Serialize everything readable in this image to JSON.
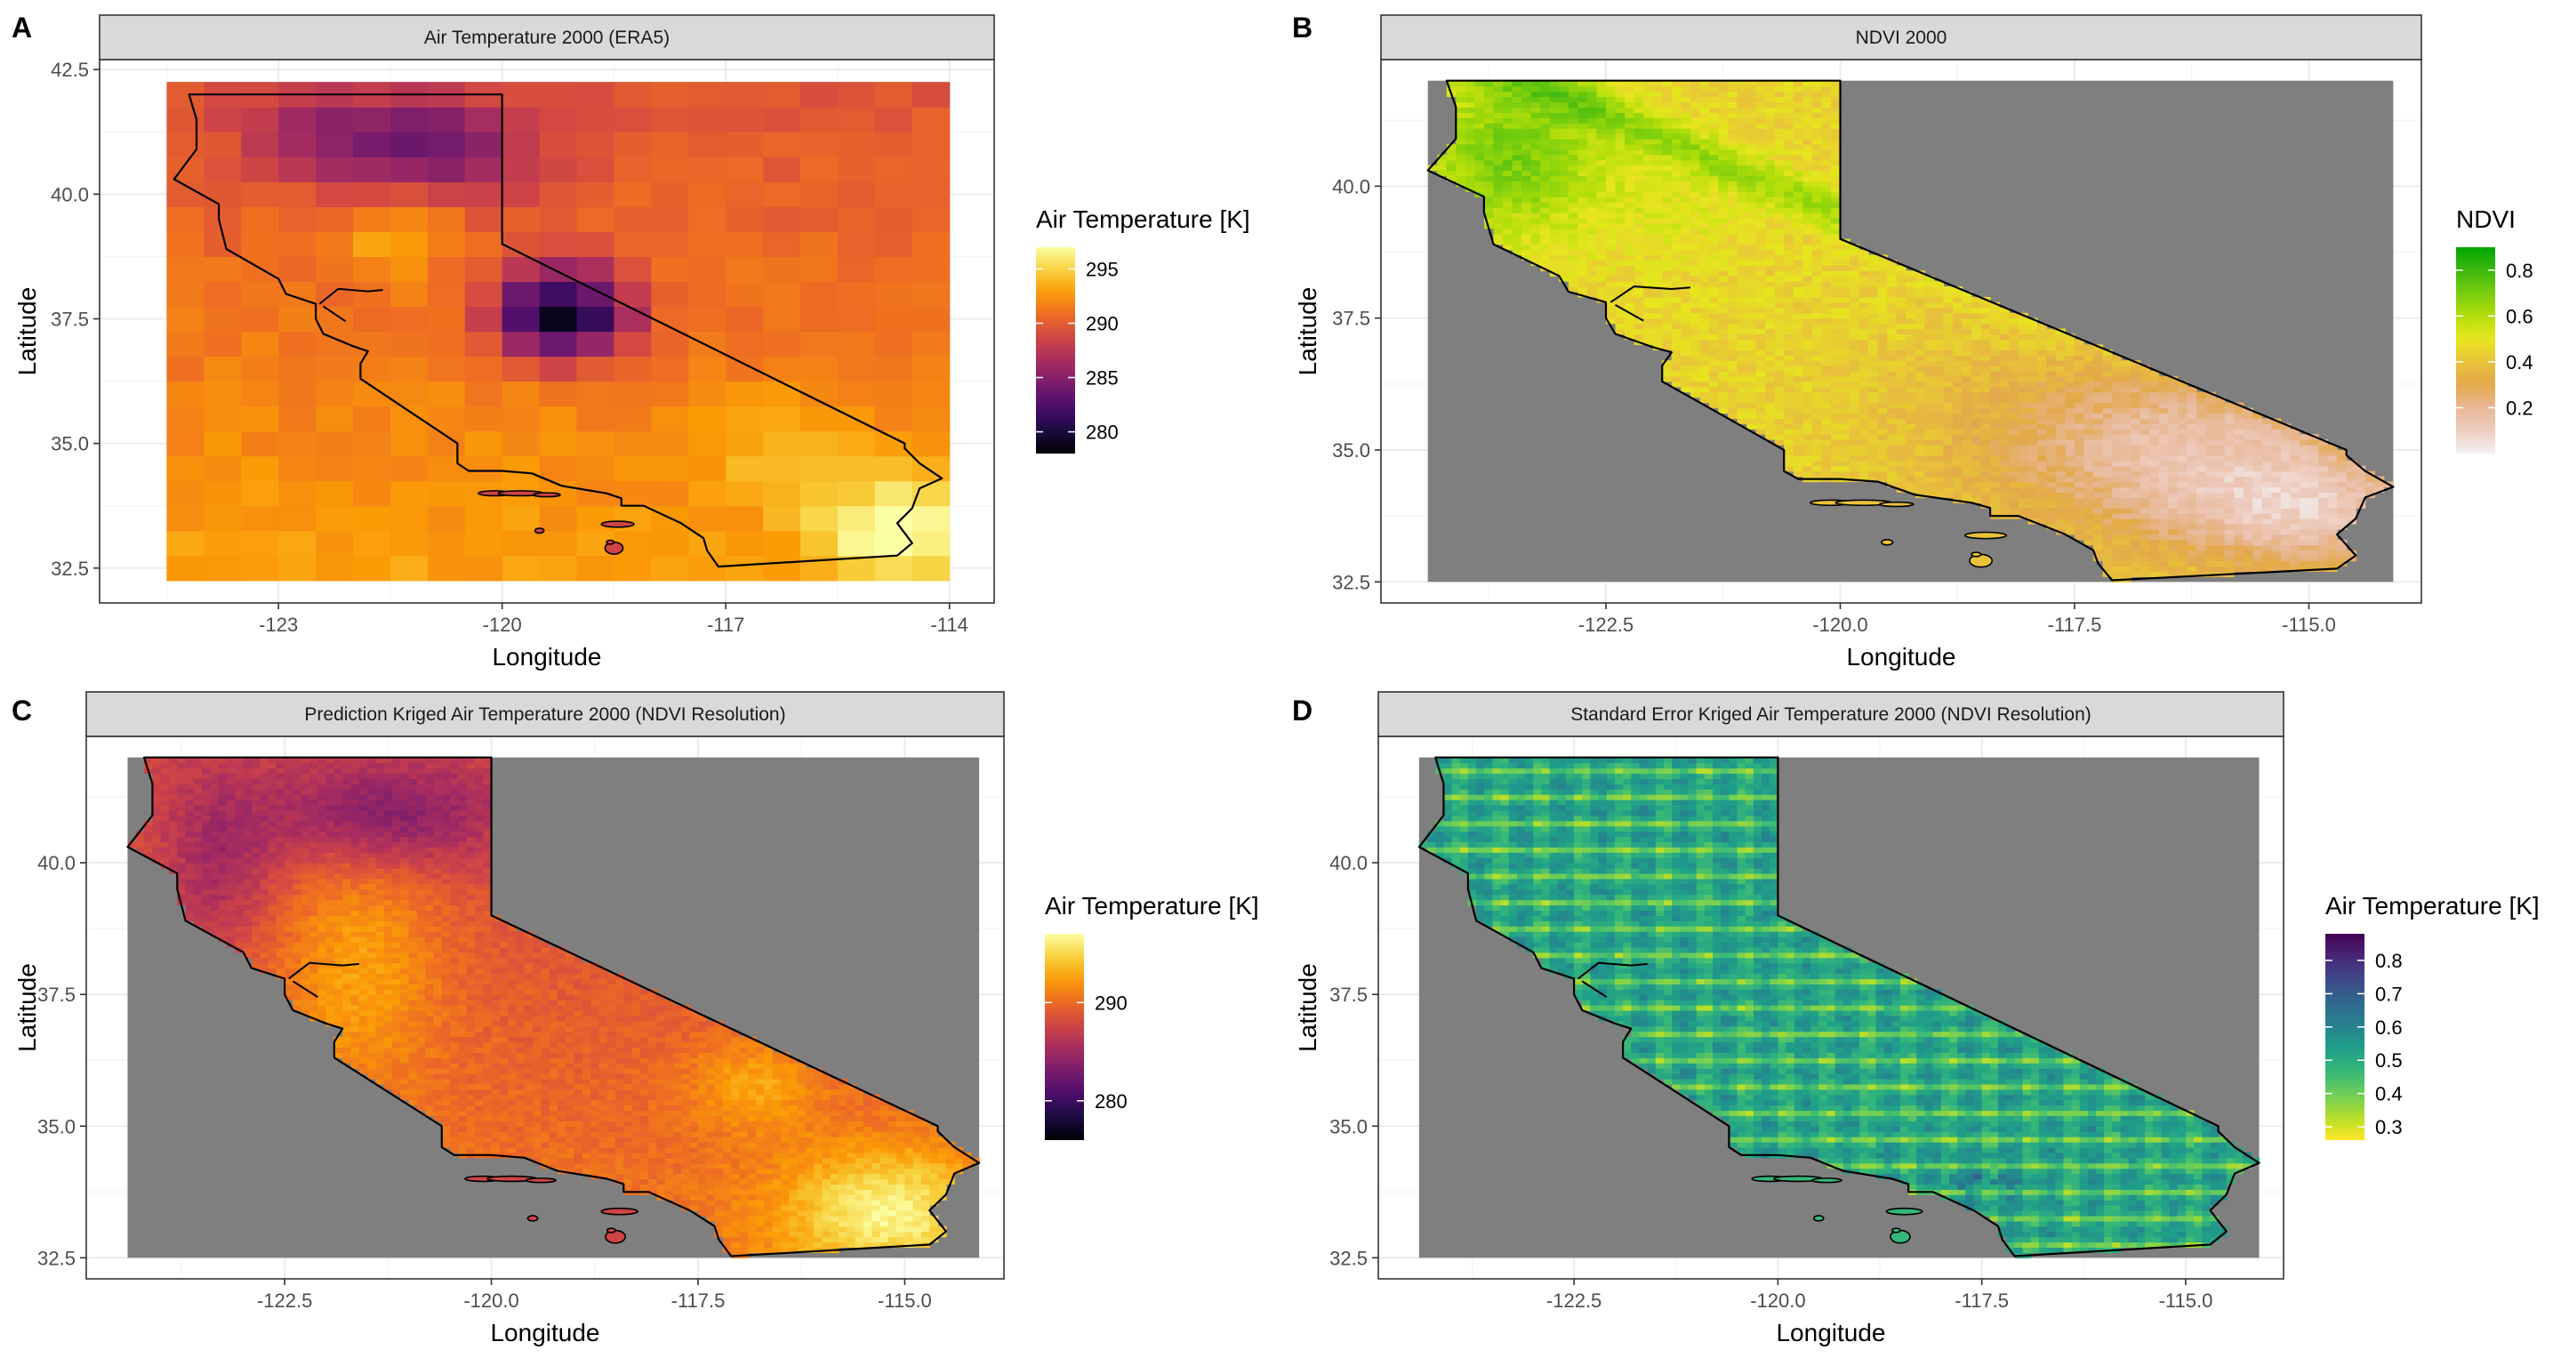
{
  "chart_data": [
    {
      "panel": "A",
      "type": "heatmap",
      "title": "Air Temperature 2000 (ERA5)",
      "xlabel": "Longitude",
      "ylabel": "Latitude",
      "xlim": [
        -125.4,
        -113.4
      ],
      "ylim": [
        31.8,
        42.7
      ],
      "xticks": [
        -123,
        -120,
        -117,
        -114
      ],
      "xtick_labels": [
        "-123",
        "-120",
        "-117",
        "-114"
      ],
      "yticks": [
        32.5,
        35.0,
        37.5,
        40.0,
        42.5
      ],
      "ytick_labels": [
        "32.5",
        "35.0",
        "37.5",
        "40.0",
        "42.5"
      ],
      "grid": true,
      "legend": {
        "title": "Air Temperature [K]",
        "placement": "right",
        "palette": "inferno",
        "range": [
          278,
          297
        ],
        "ticks": [
          280,
          285,
          290,
          295
        ],
        "tick_labels": [
          "280",
          "285",
          "290",
          "295"
        ]
      },
      "grid_extent": {
        "lon": [
          -124.5,
          -114.0
        ],
        "lat": [
          32.25,
          42.25
        ]
      },
      "cell_size": 0.5,
      "feature_notes": {
        "cold_center": [
          -119.25,
          37.5
        ],
        "warm_se": [
          -114.7,
          33.2
        ]
      }
    },
    {
      "panel": "B",
      "type": "heatmap",
      "title": "NDVI 2000",
      "xlabel": "Longitude",
      "ylabel": "Latitude",
      "xlim": [
        -124.9,
        -113.8
      ],
      "ylim": [
        32.1,
        42.4
      ],
      "xticks": [
        -122.5,
        -120.0,
        -117.5,
        -115.0
      ],
      "xtick_labels": [
        "-122.5",
        "-120.0",
        "-117.5",
        "-115.0"
      ],
      "yticks": [
        32.5,
        35.0,
        37.5,
        40.0
      ],
      "ytick_labels": [
        "32.5",
        "35.0",
        "37.5",
        "40.0"
      ],
      "grid": true,
      "legend": {
        "title": "NDVI",
        "placement": "right",
        "palette": "terrain-reversed",
        "range": [
          0.0,
          0.9
        ],
        "ticks": [
          0.2,
          0.4,
          0.6,
          0.8
        ],
        "tick_labels": [
          "0.2",
          "0.4",
          "0.6",
          "0.8"
        ]
      },
      "grid_extent": {
        "lon": [
          -124.4,
          -114.1
        ],
        "lat": [
          32.5,
          42.0
        ]
      }
    },
    {
      "panel": "C",
      "type": "heatmap",
      "title": "Prediction Kriged Air Temperature 2000 (NDVI Resolution)",
      "xlabel": "Longitude",
      "ylabel": "Latitude",
      "xlim": [
        -124.9,
        -113.8
      ],
      "ylim": [
        32.1,
        42.4
      ],
      "xticks": [
        -122.5,
        -120.0,
        -117.5,
        -115.0
      ],
      "xtick_labels": [
        "-122.5",
        "-120.0",
        "-117.5",
        "-115.0"
      ],
      "yticks": [
        32.5,
        35.0,
        37.5,
        40.0
      ],
      "ytick_labels": [
        "32.5",
        "35.0",
        "37.5",
        "40.0"
      ],
      "grid": true,
      "legend": {
        "title": "Air Temperature [K]",
        "placement": "right",
        "palette": "inferno",
        "range": [
          276,
          297
        ],
        "ticks": [
          280,
          290
        ],
        "tick_labels": [
          "280",
          "290"
        ]
      },
      "grid_extent": {
        "lon": [
          -124.4,
          -114.1
        ],
        "lat": [
          32.5,
          42.0
        ]
      }
    },
    {
      "panel": "D",
      "type": "heatmap",
      "title": "Standard Error Kriged Air Temperature 2000 (NDVI Resolution)",
      "xlabel": "Longitude",
      "ylabel": "Latitude",
      "xlim": [
        -124.9,
        -113.8
      ],
      "ylim": [
        32.1,
        42.4
      ],
      "xticks": [
        -122.5,
        -120.0,
        -117.5,
        -115.0
      ],
      "xtick_labels": [
        "-122.5",
        "-120.0",
        "-117.5",
        "-115.0"
      ],
      "yticks": [
        32.5,
        35.0,
        37.5,
        40.0
      ],
      "ytick_labels": [
        "32.5",
        "35.0",
        "37.5",
        "40.0"
      ],
      "grid": true,
      "legend": {
        "title": "Air Temperature [K]",
        "placement": "right",
        "palette": "viridis-reversed",
        "range": [
          0.26,
          0.88
        ],
        "ticks": [
          0.3,
          0.4,
          0.5,
          0.6,
          0.7,
          0.8
        ],
        "tick_labels": [
          "0.3",
          "0.4",
          "0.5",
          "0.6",
          "0.7",
          "0.8"
        ]
      },
      "grid_extent": {
        "lon": [
          -124.4,
          -114.1
        ],
        "lat": [
          32.5,
          42.0
        ]
      }
    }
  ],
  "panel_letters": [
    "A",
    "B",
    "C",
    "D"
  ],
  "colors": {
    "background": "#ffffff",
    "ocean_na": "#7f7f7f",
    "strip": "#d9d9d9",
    "grid": "#ebebeb",
    "outline": "#000000"
  },
  "california_outline": [
    [
      -124.2,
      42.0
    ],
    [
      -120.0,
      42.0
    ],
    [
      -120.0,
      39.0
    ],
    [
      -114.6,
      35.0
    ],
    [
      -114.6,
      34.9
    ],
    [
      -114.4,
      34.6
    ],
    [
      -114.1,
      34.3
    ],
    [
      -114.4,
      34.1
    ],
    [
      -114.5,
      33.7
    ],
    [
      -114.7,
      33.4
    ],
    [
      -114.5,
      33.0
    ],
    [
      -114.7,
      32.75
    ],
    [
      -117.1,
      32.53
    ],
    [
      -117.25,
      32.85
    ],
    [
      -117.3,
      33.1
    ],
    [
      -117.6,
      33.4
    ],
    [
      -118.1,
      33.75
    ],
    [
      -118.4,
      33.75
    ],
    [
      -118.4,
      33.9
    ],
    [
      -118.6,
      34.0
    ],
    [
      -119.2,
      34.15
    ],
    [
      -119.6,
      34.4
    ],
    [
      -120.0,
      34.45
    ],
    [
      -120.45,
      34.45
    ],
    [
      -120.6,
      34.6
    ],
    [
      -120.6,
      35.0
    ],
    [
      -120.9,
      35.3
    ],
    [
      -121.3,
      35.7
    ],
    [
      -121.9,
      36.3
    ],
    [
      -121.9,
      36.6
    ],
    [
      -121.8,
      36.85
    ],
    [
      -122.0,
      36.95
    ],
    [
      -122.4,
      37.2
    ],
    [
      -122.5,
      37.5
    ],
    [
      -122.5,
      37.8
    ],
    [
      -122.9,
      38.0
    ],
    [
      -123.0,
      38.3
    ],
    [
      -123.7,
      38.9
    ],
    [
      -123.8,
      39.5
    ],
    [
      -123.8,
      39.8
    ],
    [
      -124.4,
      40.3
    ],
    [
      -124.1,
      40.9
    ],
    [
      -124.1,
      41.5
    ],
    [
      -124.2,
      42.0
    ]
  ],
  "islands": [
    [
      -120.1,
      34.0,
      0.22,
      0.05
    ],
    [
      -119.75,
      34.0,
      0.3,
      0.05
    ],
    [
      -119.4,
      33.97,
      0.18,
      0.04
    ],
    [
      -118.45,
      33.38,
      0.22,
      0.06
    ],
    [
      -118.5,
      32.9,
      0.12,
      0.12
    ],
    [
      -119.5,
      33.25,
      0.06,
      0.05
    ],
    [
      -118.55,
      33.02,
      0.05,
      0.04
    ]
  ]
}
